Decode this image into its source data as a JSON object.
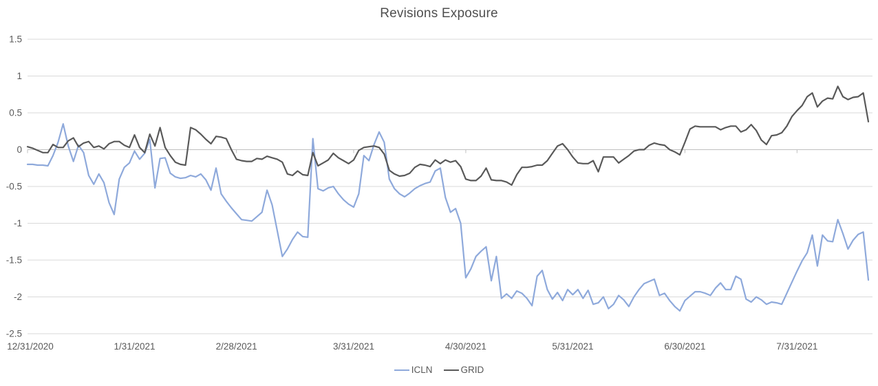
{
  "title": "Revisions Exposure",
  "colors": {
    "icln": "#8EA9DB",
    "grid_series": "#595959",
    "gridline": "#D9D9D9",
    "axis_line": "#BFBFBF",
    "axis_text": "#595959",
    "title_text": "#4F4F4F",
    "background": "#FFFFFF"
  },
  "legend": {
    "items": [
      {
        "label": "ICLN",
        "color": "#8EA9DB"
      },
      {
        "label": "GRID",
        "color": "#595959"
      }
    ]
  },
  "chart_data": {
    "type": "line",
    "title": "Revisions Exposure",
    "xlabel": "",
    "ylabel": "",
    "ylim": [
      -2.5,
      1.5
    ],
    "grid": true,
    "legend_position": "bottom",
    "y_tick_labels": [
      "1.5",
      "1",
      "0.5",
      "0",
      "-0.5",
      "-1",
      "-1.5",
      "-2",
      "-2.5"
    ],
    "y_tick_values": [
      1.5,
      1,
      0.5,
      0,
      -0.5,
      -1,
      -1.5,
      -2,
      -2.5
    ],
    "x_tick_labels": [
      "12/31/2020",
      "1/31/2021",
      "2/28/2021",
      "3/31/2021",
      "4/30/2021",
      "5/31/2021",
      "6/30/2021",
      "7/31/2021"
    ],
    "x_tick_indices": [
      0,
      21,
      41,
      64,
      86,
      107,
      129,
      151
    ],
    "n_points": 166,
    "series": [
      {
        "name": "ICLN",
        "color": "#8EA9DB",
        "values": [
          -0.2,
          -0.2,
          -0.21,
          -0.21,
          -0.22,
          -0.08,
          0.1,
          0.35,
          0.05,
          -0.16,
          0.06,
          -0.04,
          -0.35,
          -0.47,
          -0.33,
          -0.45,
          -0.72,
          -0.88,
          -0.4,
          -0.24,
          -0.18,
          -0.02,
          -0.13,
          -0.05,
          0.14,
          -0.52,
          -0.12,
          -0.11,
          -0.32,
          -0.37,
          -0.39,
          -0.38,
          -0.35,
          -0.37,
          -0.33,
          -0.41,
          -0.55,
          -0.25,
          -0.6,
          -0.7,
          -0.79,
          -0.87,
          -0.95,
          -0.96,
          -0.97,
          -0.91,
          -0.85,
          -0.55,
          -0.75,
          -1.1,
          -1.45,
          -1.35,
          -1.22,
          -1.12,
          -1.18,
          -1.19,
          0.15,
          -0.53,
          -0.56,
          -0.52,
          -0.5,
          -0.6,
          -0.68,
          -0.74,
          -0.78,
          -0.6,
          -0.08,
          -0.15,
          0.07,
          0.24,
          0.1,
          -0.4,
          -0.53,
          -0.6,
          -0.64,
          -0.59,
          -0.53,
          -0.49,
          -0.46,
          -0.44,
          -0.29,
          -0.25,
          -0.65,
          -0.85,
          -0.8,
          -1.0,
          -1.74,
          -1.62,
          -1.45,
          -1.38,
          -1.32,
          -1.78,
          -1.45,
          -2.02,
          -1.96,
          -2.02,
          -1.92,
          -1.95,
          -2.02,
          -2.12,
          -1.72,
          -1.64,
          -1.9,
          -2.03,
          -1.94,
          -2.05,
          -1.9,
          -1.97,
          -1.9,
          -2.02,
          -1.91,
          -2.1,
          -2.08,
          -2.0,
          -2.16,
          -2.1,
          -1.98,
          -2.04,
          -2.13,
          -2.0,
          -1.9,
          -1.82,
          -1.79,
          -1.76,
          -1.98,
          -1.95,
          -2.05,
          -2.13,
          -2.19,
          -2.05,
          -1.99,
          -1.93,
          -1.93,
          -1.95,
          -1.98,
          -1.88,
          -1.81,
          -1.9,
          -1.9,
          -1.72,
          -1.76,
          -2.03,
          -2.07,
          -2.0,
          -2.04,
          -2.1,
          -2.07,
          -2.08,
          -2.1,
          -1.95,
          -1.8,
          -1.65,
          -1.51,
          -1.4,
          -1.16,
          -1.58,
          -1.16,
          -1.24,
          -1.25,
          -0.95,
          -1.14,
          -1.35,
          -1.23,
          -1.15,
          -1.12,
          -1.77
        ]
      },
      {
        "name": "GRID",
        "color": "#595959",
        "values": [
          0.04,
          0.02,
          -0.01,
          -0.04,
          -0.04,
          0.07,
          0.03,
          0.03,
          0.12,
          0.16,
          0.04,
          0.09,
          0.11,
          0.03,
          0.05,
          0.01,
          0.08,
          0.11,
          0.11,
          0.06,
          0.03,
          0.2,
          0.03,
          -0.04,
          0.21,
          0.05,
          0.3,
          0.03,
          -0.08,
          -0.17,
          -0.2,
          -0.21,
          0.3,
          0.27,
          0.21,
          0.14,
          0.08,
          0.18,
          0.17,
          0.15,
          0.0,
          -0.13,
          -0.15,
          -0.16,
          -0.16,
          -0.12,
          -0.13,
          -0.09,
          -0.11,
          -0.13,
          -0.17,
          -0.33,
          -0.35,
          -0.29,
          -0.34,
          -0.35,
          -0.04,
          -0.22,
          -0.18,
          -0.14,
          -0.05,
          -0.11,
          -0.15,
          -0.19,
          -0.14,
          -0.01,
          0.03,
          0.04,
          0.05,
          0.03,
          -0.06,
          -0.28,
          -0.33,
          -0.36,
          -0.35,
          -0.32,
          -0.24,
          -0.2,
          -0.21,
          -0.23,
          -0.14,
          -0.19,
          -0.14,
          -0.17,
          -0.15,
          -0.23,
          -0.4,
          -0.42,
          -0.42,
          -0.36,
          -0.25,
          -0.41,
          -0.42,
          -0.42,
          -0.44,
          -0.48,
          -0.34,
          -0.24,
          -0.24,
          -0.23,
          -0.21,
          -0.21,
          -0.15,
          -0.05,
          0.05,
          0.08,
          0.0,
          -0.1,
          -0.18,
          -0.19,
          -0.19,
          -0.15,
          -0.3,
          -0.1,
          -0.1,
          -0.1,
          -0.18,
          -0.13,
          -0.08,
          -0.02,
          0.0,
          0.0,
          0.06,
          0.09,
          0.07,
          0.06,
          0.0,
          -0.03,
          -0.07,
          0.1,
          0.28,
          0.32,
          0.31,
          0.31,
          0.31,
          0.31,
          0.27,
          0.3,
          0.32,
          0.32,
          0.24,
          0.27,
          0.34,
          0.26,
          0.13,
          0.07,
          0.19,
          0.2,
          0.23,
          0.32,
          0.45,
          0.53,
          0.6,
          0.72,
          0.77,
          0.58,
          0.66,
          0.7,
          0.69,
          0.86,
          0.72,
          0.68,
          0.71,
          0.72,
          0.77,
          0.38
        ]
      }
    ]
  }
}
